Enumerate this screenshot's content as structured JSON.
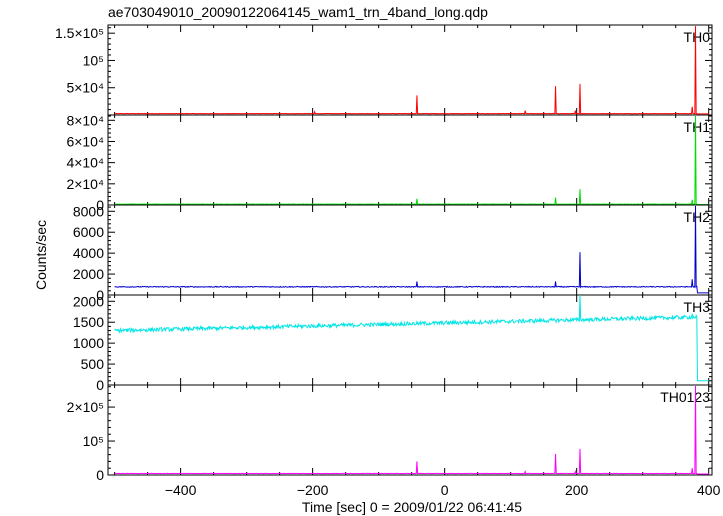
{
  "chart_data": {
    "type": "line",
    "title": "ae703049010_20090122064145_wam1_trn_4band_long.qdp",
    "xlabel": "Time [sec] 0 = 2009/01/22 06:41:45",
    "ylabel": "Counts/sec",
    "xlim": [
      -510,
      405
    ],
    "x_ticks": [
      {
        "value": -400,
        "label": "−400"
      },
      {
        "value": -200,
        "label": "−200"
      },
      {
        "value": 0,
        "label": "0"
      },
      {
        "value": 200,
        "label": "200"
      },
      {
        "value": 400,
        "label": "400"
      }
    ],
    "legend": "none",
    "grid": false,
    "panels": [
      {
        "name": "TH0",
        "color": "#ff0000",
        "ylim": [
          0,
          165000
        ],
        "y_ticks": [
          {
            "value": 0,
            "label": ""
          },
          {
            "value": 50000,
            "label": "5×10⁴"
          },
          {
            "value": 100000,
            "label": "10⁵"
          },
          {
            "value": 150000,
            "label": "1.5×10⁵"
          }
        ],
        "baseline": 2500,
        "noise": 300,
        "trend": 0,
        "spikes": [
          {
            "t": -197,
            "v": 6000
          },
          {
            "t": -42,
            "v": 36000
          },
          {
            "t": 122,
            "v": 8000
          },
          {
            "t": 168,
            "v": 53000
          },
          {
            "t": 198,
            "v": 8000
          },
          {
            "t": 205,
            "v": 57000
          },
          {
            "t": 375,
            "v": 15000
          },
          {
            "t": 380,
            "v": 163000
          }
        ],
        "cutoff": 382,
        "after_cutoff": 2000
      },
      {
        "name": "TH1",
        "color": "#00dd00",
        "ylim": [
          0,
          85000
        ],
        "y_ticks": [
          {
            "value": 0,
            "label": "0"
          },
          {
            "value": 20000,
            "label": "2×10⁴"
          },
          {
            "value": 40000,
            "label": "4×10⁴"
          },
          {
            "value": 60000,
            "label": "6×10⁴"
          },
          {
            "value": 80000,
            "label": "8×10⁴"
          }
        ],
        "baseline": 800,
        "noise": 150,
        "trend": 0,
        "spikes": [
          {
            "t": -42,
            "v": 6000
          },
          {
            "t": 168,
            "v": 7000
          },
          {
            "t": 205,
            "v": 15000
          },
          {
            "t": 375,
            "v": 5000
          },
          {
            "t": 380,
            "v": 84000
          }
        ],
        "cutoff": 382,
        "after_cutoff": 500
      },
      {
        "name": "TH2",
        "color": "#0000cc",
        "ylim": [
          0,
          8600
        ],
        "y_ticks": [
          {
            "value": 0,
            "label": "0"
          },
          {
            "value": 2000,
            "label": "2000"
          },
          {
            "value": 4000,
            "label": "4000"
          },
          {
            "value": 6000,
            "label": "6000"
          },
          {
            "value": 8000,
            "label": "8000"
          }
        ],
        "baseline": 780,
        "noise": 40,
        "trend": 0,
        "spikes": [
          {
            "t": -42,
            "v": 1300
          },
          {
            "t": 168,
            "v": 1300
          },
          {
            "t": 205,
            "v": 4100
          },
          {
            "t": 375,
            "v": 1500
          },
          {
            "t": 380,
            "v": 8500
          }
        ],
        "cutoff": 382,
        "after_cutoff": 200
      },
      {
        "name": "TH3",
        "color": "#00e5e5",
        "ylim": [
          0,
          2150
        ],
        "y_ticks": [
          {
            "value": 0,
            "label": "0"
          },
          {
            "value": 500,
            "label": "500"
          },
          {
            "value": 1000,
            "label": "1000"
          },
          {
            "value": 1500,
            "label": "1500"
          },
          {
            "value": 2000,
            "label": "2000"
          }
        ],
        "baseline": 1300,
        "noise": 45,
        "trend": 330,
        "spikes": [
          {
            "t": 205,
            "v": 2150
          },
          {
            "t": 375,
            "v": 1700
          }
        ],
        "cutoff": 382,
        "after_cutoff": 100
      },
      {
        "name": "TH0123",
        "color": "#ff00ff",
        "ylim": [
          0,
          265000
        ],
        "y_ticks": [
          {
            "value": 0,
            "label": "0"
          },
          {
            "value": 100000,
            "label": "10⁵"
          },
          {
            "value": 200000,
            "label": "2×10⁵"
          }
        ],
        "baseline": 4500,
        "noise": 500,
        "trend": 0,
        "spikes": [
          {
            "t": -42,
            "v": 40000
          },
          {
            "t": 122,
            "v": 10000
          },
          {
            "t": 168,
            "v": 62000
          },
          {
            "t": 198,
            "v": 10000
          },
          {
            "t": 205,
            "v": 77000
          },
          {
            "t": 375,
            "v": 20000
          },
          {
            "t": 380,
            "v": 262000
          }
        ],
        "cutoff": 382,
        "after_cutoff": 3000
      }
    ]
  }
}
